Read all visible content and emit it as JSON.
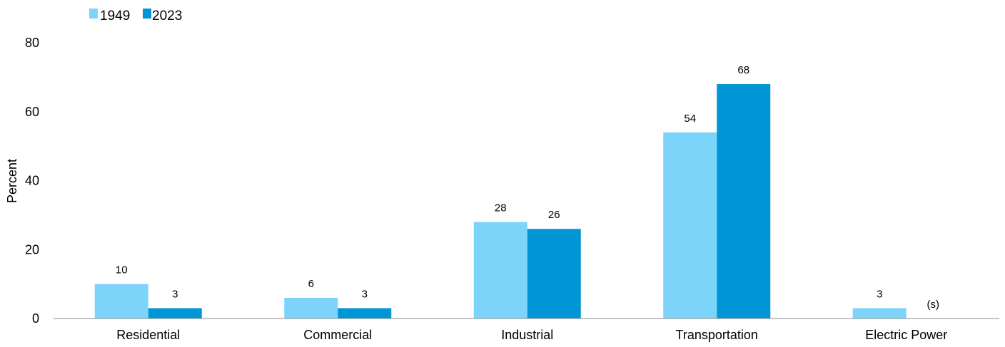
{
  "chart_data": {
    "type": "bar",
    "categories": [
      "Residential",
      "Commercial",
      "Industrial",
      "Transportation",
      "Electric Power"
    ],
    "series": [
      {
        "name": "1949",
        "values": [
          10,
          6,
          28,
          54,
          3
        ],
        "labels": [
          "10",
          "6",
          "28",
          "54",
          "3"
        ],
        "color": "#7dd4fb"
      },
      {
        "name": "2023",
        "values": [
          3,
          3,
          26,
          68,
          0
        ],
        "labels": [
          "3",
          "3",
          "26",
          "68",
          "(s)"
        ],
        "color": "#0096d6"
      }
    ],
    "ylabel": "Percent",
    "xlabel": "",
    "ylim": [
      0,
      80
    ],
    "yticks": [
      "0",
      "20",
      "40",
      "60",
      "80"
    ],
    "grid": false,
    "legend": "top-left"
  }
}
